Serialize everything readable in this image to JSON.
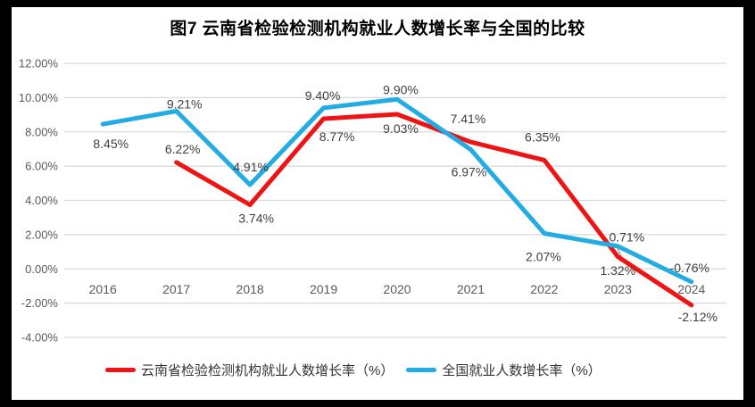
{
  "title": "图7  云南省检验检测机构就业人数增长率与全国的比较",
  "chart_data": {
    "type": "line",
    "categories": [
      "2016",
      "2017",
      "2018",
      "2019",
      "2020",
      "2021",
      "2022",
      "2023",
      "2024"
    ],
    "series": [
      {
        "name": "云南省检验检测机构就业人数增长率（%）",
        "color": "#ee1414",
        "values": [
          null,
          6.22,
          3.74,
          8.77,
          9.03,
          7.41,
          6.35,
          0.71,
          -2.12
        ]
      },
      {
        "name": "全国就业人数增长率（%）",
        "color": "#22ace3",
        "values": [
          8.45,
          9.21,
          4.91,
          9.4,
          9.9,
          6.97,
          2.07,
          1.32,
          -0.76
        ]
      }
    ],
    "ylim": [
      -4,
      12
    ],
    "y_tick_values": [
      12,
      10,
      8,
      6,
      4,
      2,
      0,
      -2,
      -4
    ],
    "y_tick_labels": [
      "12.00%",
      "10.00%",
      "8.00%",
      "6.00%",
      "4.00%",
      "2.00%",
      "0.00%",
      "-2.00%",
      "-4.00%"
    ],
    "data_label_format": "0.00%",
    "grid": true,
    "legend_position": "bottom",
    "notes": "red series has no 2016 value; 0.71% label attached to red 2023 point via leader line"
  },
  "colors": {
    "yunnan_line": "#ee1414",
    "national_line": "#22ace3",
    "grid": "#d9d9d9",
    "axis_text": "#595959",
    "data_label_text": "#3f3f3f",
    "leader": "#a6a6a6",
    "panel": "#ffffff",
    "frame": "#000000",
    "title_text": "#000000"
  }
}
